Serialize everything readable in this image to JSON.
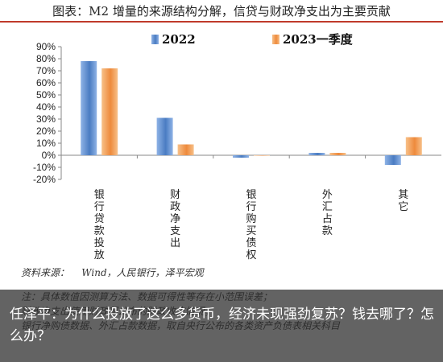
{
  "chart_data": {
    "type": "bar",
    "title": "图表：M2 增量的来源结构分解，信贷与财政净支出为主要贡献",
    "categories": [
      "银行贷款投放",
      "财政净支出",
      "银行购买债权",
      "外汇占款",
      "其它"
    ],
    "series": [
      {
        "name": "2022",
        "values": [
          78,
          31,
          -2,
          2,
          -8
        ]
      },
      {
        "name": "2023一季度",
        "values": [
          72,
          9,
          0,
          2,
          15
        ]
      }
    ],
    "ylim": [
      -20,
      90
    ],
    "yticks": [
      "90%",
      "80%",
      "70%",
      "60%",
      "50%",
      "40%",
      "30%",
      "20%",
      "10%",
      "0%",
      "-10%",
      "-20%"
    ],
    "ytick_values": [
      90,
      80,
      70,
      60,
      50,
      40,
      30,
      20,
      10,
      0,
      -10,
      -20
    ],
    "legend_position": "top",
    "grid": false,
    "colors": {
      "2022": "#4a7cc2",
      "2023一季度": "#ee8a3c"
    }
  },
  "source": {
    "label": "资料来源：",
    "text": "Wind，人民银行，泽平宏观"
  },
  "notes": [
    "注：具体数值因测算方法、数据可得性等存在小范围误差；",
    "财政净支出使用财政部公布的财政收支情况；",
    "银行净购债数据、外汇占款数据，取自央行公布的各类资产负债表相关科目"
  ],
  "overlay": {
    "headline": "任泽平：为什么投放了这么多货币，经济未现强劲复苏？钱去哪了？怎么办？"
  }
}
